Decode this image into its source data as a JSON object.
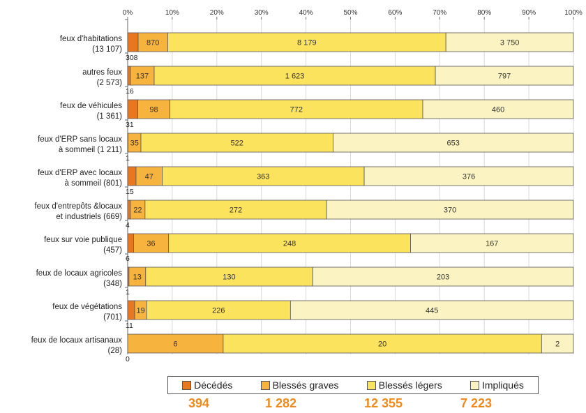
{
  "colors": {
    "deces": "#e7781f",
    "blesses_graves": "#f6b33d",
    "blesses_legers": "#fbe35e",
    "impliques": "#fbf4c2"
  },
  "chart_data": {
    "type": "bar",
    "orientation": "horizontal",
    "stacked": "percent",
    "xlim": [
      0,
      100
    ],
    "x_ticks": [
      "0%",
      "10%",
      "20%",
      "30%",
      "40%",
      "50%",
      "60%",
      "70%",
      "80%",
      "90%",
      "100%"
    ],
    "grid": true,
    "legend": "bottom",
    "categories": [
      "feux d'habitations (13 107)",
      "autres feux (2 573)",
      "feux de véhicules (1 361)",
      "feux d'ERP sans locaux à sommeil (1 211)",
      "feux d'ERP avec locaux à sommeil (801)",
      "feux d'entrepôts &locaux et industriels (669)",
      "feux sur voie publique (457)",
      "feux de locaux agricoles (348)",
      "feux de végétations (701)",
      "feux de locaux artisanaux (28)"
    ],
    "category_lines": [
      [
        "feux d'habitations",
        "(13 107)"
      ],
      [
        "autres feux",
        "(2 573)"
      ],
      [
        "feux de véhicules",
        "(1 361)"
      ],
      [
        "feux d'ERP sans locaux",
        "à sommeil (1 211)"
      ],
      [
        "feux d'ERP avec locaux",
        "à sommeil (801)"
      ],
      [
        "feux d'entrepôts &locaux",
        "et industriels (669)"
      ],
      [
        "feux sur voie publique",
        "(457)"
      ],
      [
        "feux de locaux agricoles",
        "(348)"
      ],
      [
        "feux de végétations",
        "(701)"
      ],
      [
        "feux de locaux artisanaux",
        "(28)"
      ]
    ],
    "series": [
      {
        "name": "Décédés",
        "values": [
          308,
          16,
          31,
          1,
          15,
          4,
          6,
          1,
          11,
          0
        ]
      },
      {
        "name": "Blessés graves",
        "values": [
          870,
          137,
          98,
          35,
          47,
          22,
          36,
          13,
          19,
          6
        ]
      },
      {
        "name": "Blessés légers",
        "values": [
          8179,
          1623,
          772,
          522,
          363,
          272,
          248,
          130,
          226,
          20
        ]
      },
      {
        "name": "Impliqués",
        "values": [
          3750,
          797,
          460,
          653,
          376,
          370,
          167,
          203,
          445,
          2
        ]
      }
    ],
    "value_labels": [
      [
        "308",
        "870",
        "8 179",
        "3 750"
      ],
      [
        "16",
        "137",
        "1 623",
        "797"
      ],
      [
        "31",
        "98",
        "772",
        "460"
      ],
      [
        "1",
        "35",
        "522",
        "653"
      ],
      [
        "15",
        "47",
        "363",
        "376"
      ],
      [
        "4",
        "22",
        "272",
        "370"
      ],
      [
        "6",
        "36",
        "248",
        "167"
      ],
      [
        "1",
        "13",
        "130",
        "203"
      ],
      [
        "11",
        "19",
        "226",
        "445"
      ],
      [
        "0",
        "6",
        "20",
        "2"
      ]
    ]
  },
  "legend": {
    "items": [
      "Décédés",
      "Blessés graves",
      "Blessés légers",
      "Impliqués"
    ]
  },
  "totals": [
    "394",
    "1 282",
    "12 355",
    "7 223"
  ]
}
